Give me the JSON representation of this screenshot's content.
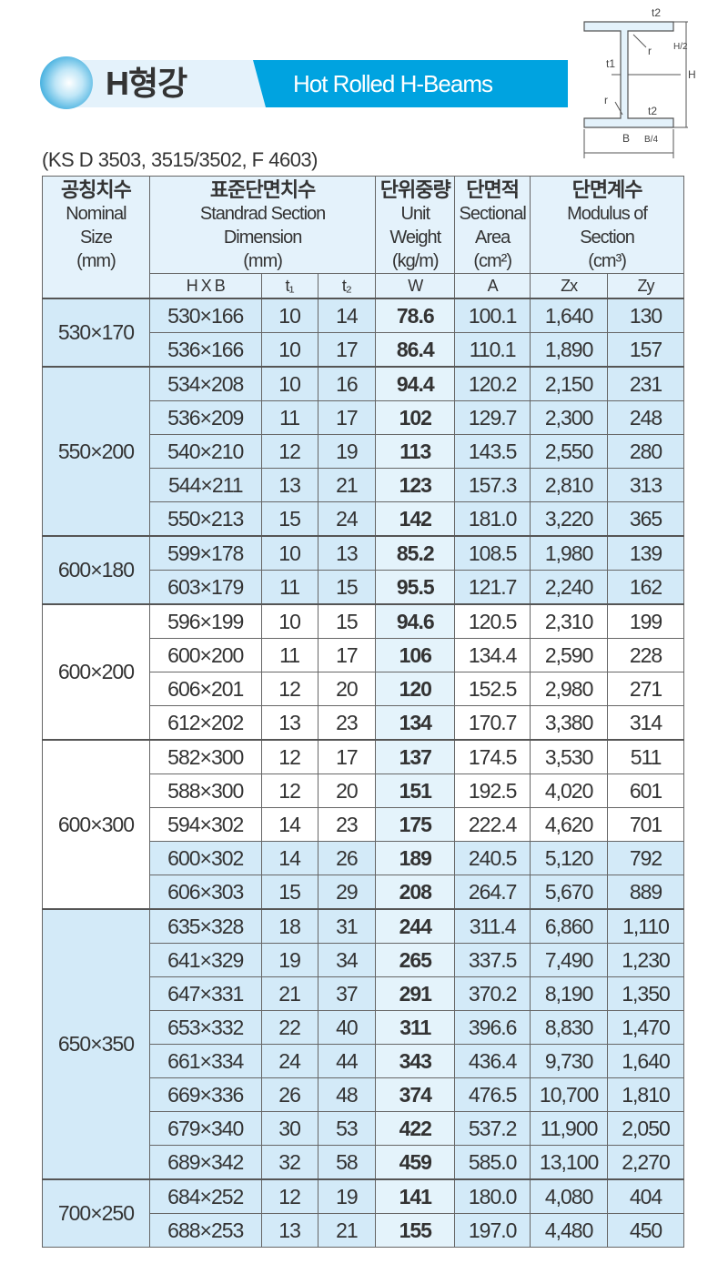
{
  "header": {
    "title_ko": "H형강",
    "title_en": "Hot Rolled H-Beams",
    "standard": "(KS D 3503, 3515/3502, F 4603)"
  },
  "diagram": {
    "labels": [
      "t2",
      "r",
      "H/2",
      "t1",
      "H",
      "r",
      "t2",
      "B",
      "B/4"
    ]
  },
  "table": {
    "headers": {
      "nominal": {
        "ko": "공칭치수",
        "en1": "Nominal",
        "en2": "Size",
        "unit": "(mm)"
      },
      "dimension": {
        "ko": "표준단면치수",
        "en1": "Standrad Section",
        "en2": "Dimension",
        "unit": "(mm)"
      },
      "weight": {
        "ko": "단위중량",
        "en1": "Unit",
        "en2": "Weight",
        "unit": "(kg/m)"
      },
      "area": {
        "ko": "단면적",
        "en1": "Sectional",
        "en2": "Area",
        "unit": "(cm²)"
      },
      "modulus": {
        "ko": "단면계수",
        "en1": "Modulus of",
        "en2": "Section",
        "unit": "(cm³)"
      },
      "sub": [
        "H X B",
        "t₁",
        "t₂",
        "W",
        "A",
        "Zx",
        "Zy"
      ]
    },
    "groups": [
      {
        "nominal": "530×170",
        "highlight": true,
        "rows": [
          [
            "530×166",
            "10",
            "14",
            "78.6",
            "100.1",
            "1,640",
            "130"
          ],
          [
            "536×166",
            "10",
            "17",
            "86.4",
            "110.1",
            "1,890",
            "157"
          ]
        ]
      },
      {
        "nominal": "550×200",
        "highlight": true,
        "rows": [
          [
            "534×208",
            "10",
            "16",
            "94.4",
            "120.2",
            "2,150",
            "231"
          ],
          [
            "536×209",
            "11",
            "17",
            "102",
            "129.7",
            "2,300",
            "248"
          ],
          [
            "540×210",
            "12",
            "19",
            "113",
            "143.5",
            "2,550",
            "280"
          ],
          [
            "544×211",
            "13",
            "21",
            "123",
            "157.3",
            "2,810",
            "313"
          ],
          [
            "550×213",
            "15",
            "24",
            "142",
            "181.0",
            "3,220",
            "365"
          ]
        ]
      },
      {
        "nominal": "600×180",
        "highlight": true,
        "rows": [
          [
            "599×178",
            "10",
            "13",
            "85.2",
            "108.5",
            "1,980",
            "139"
          ],
          [
            "603×179",
            "11",
            "15",
            "95.5",
            "121.7",
            "2,240",
            "162"
          ]
        ]
      },
      {
        "nominal": "600×200",
        "highlight": false,
        "rows": [
          [
            "596×199",
            "10",
            "15",
            "94.6",
            "120.5",
            "2,310",
            "199"
          ],
          [
            "600×200",
            "11",
            "17",
            "106",
            "134.4",
            "2,590",
            "228"
          ],
          [
            "606×201",
            "12",
            "20",
            "120",
            "152.5",
            "2,980",
            "271"
          ],
          [
            "612×202",
            "13",
            "23",
            "134",
            "170.7",
            "3,380",
            "314"
          ]
        ]
      },
      {
        "nominal": "600×300",
        "highlight": false,
        "blue_rows": [
          3,
          4
        ],
        "rows": [
          [
            "582×300",
            "12",
            "17",
            "137",
            "174.5",
            "3,530",
            "511"
          ],
          [
            "588×300",
            "12",
            "20",
            "151",
            "192.5",
            "4,020",
            "601"
          ],
          [
            "594×302",
            "14",
            "23",
            "175",
            "222.4",
            "4,620",
            "701"
          ],
          [
            "600×302",
            "14",
            "26",
            "189",
            "240.5",
            "5,120",
            "792"
          ],
          [
            "606×303",
            "15",
            "29",
            "208",
            "264.7",
            "5,670",
            "889"
          ]
        ]
      },
      {
        "nominal": "650×350",
        "highlight": true,
        "rows": [
          [
            "635×328",
            "18",
            "31",
            "244",
            "311.4",
            "6,860",
            "1,110"
          ],
          [
            "641×329",
            "19",
            "34",
            "265",
            "337.5",
            "7,490",
            "1,230"
          ],
          [
            "647×331",
            "21",
            "37",
            "291",
            "370.2",
            "8,190",
            "1,350"
          ],
          [
            "653×332",
            "22",
            "40",
            "311",
            "396.6",
            "8,830",
            "1,470"
          ],
          [
            "661×334",
            "24",
            "44",
            "343",
            "436.4",
            "9,730",
            "1,640"
          ],
          [
            "669×336",
            "26",
            "48",
            "374",
            "476.5",
            "10,700",
            "1,810"
          ],
          [
            "679×340",
            "30",
            "53",
            "422",
            "537.2",
            "11,900",
            "2,050"
          ],
          [
            "689×342",
            "32",
            "58",
            "459",
            "585.0",
            "13,100",
            "2,270"
          ]
        ]
      },
      {
        "nominal": "700×250",
        "highlight": true,
        "solid_divider": true,
        "rows": [
          [
            "684×252",
            "12",
            "19",
            "141",
            "180.0",
            "4,080",
            "404"
          ],
          [
            "688×253",
            "13",
            "21",
            "155",
            "197.0",
            "4,480",
            "450"
          ]
        ]
      }
    ]
  }
}
